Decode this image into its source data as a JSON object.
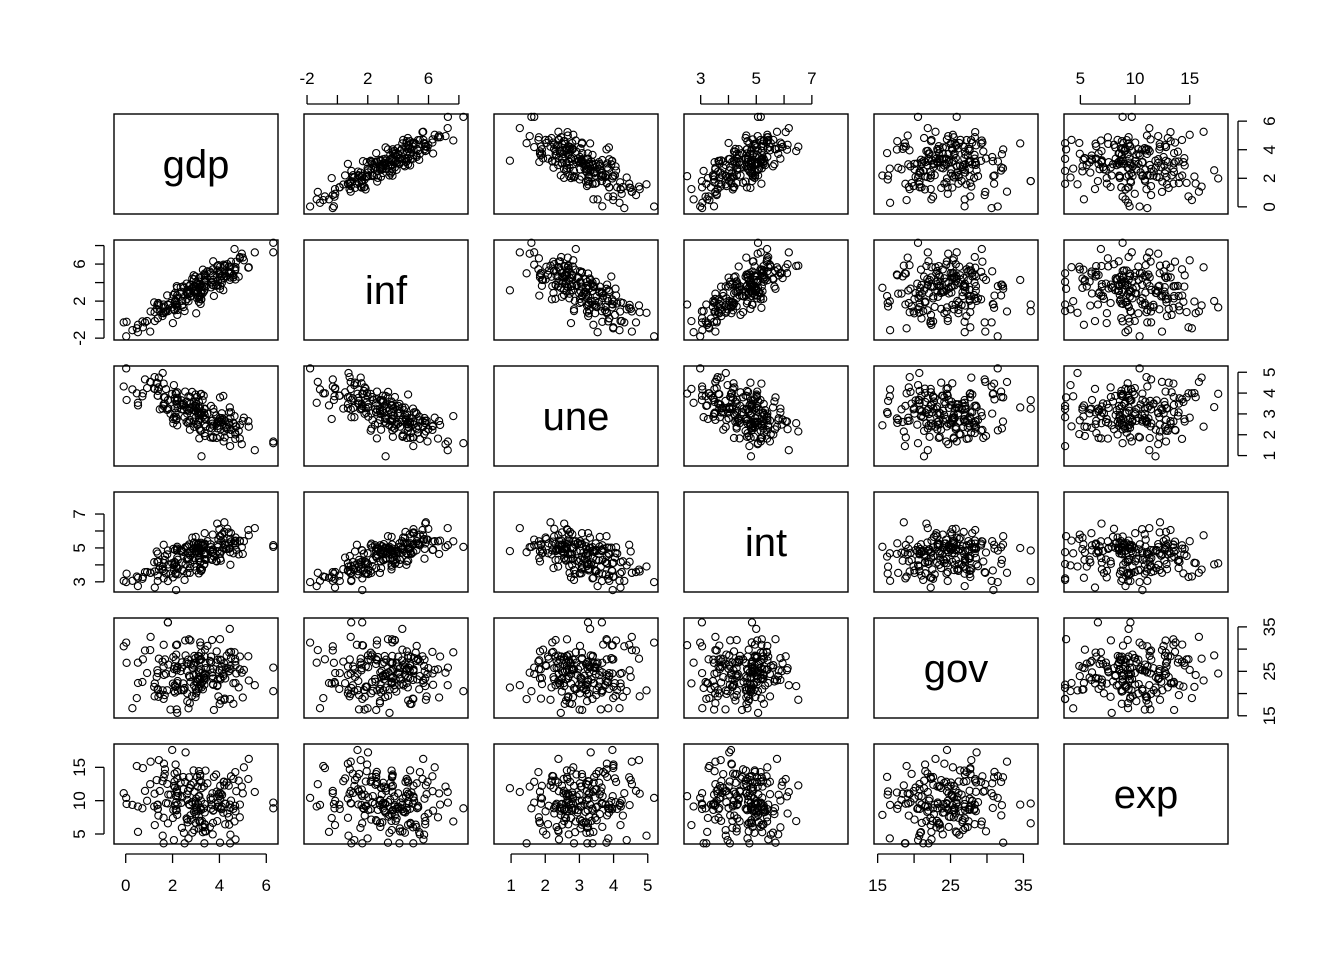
{
  "chart_data": {
    "type": "scatter",
    "subtype": "pairs-matrix",
    "variables": [
      "gdp",
      "inf",
      "une",
      "int",
      "gov",
      "exp"
    ],
    "axes": {
      "gdp": {
        "range": [
          -0.5,
          6.5
        ],
        "ticks": [
          0,
          2,
          4,
          6
        ],
        "tick_labels": [
          "0",
          "2",
          "4",
          "6"
        ]
      },
      "inf": {
        "range": [
          -2.2,
          8.6
        ],
        "ticks": [
          -2,
          0,
          2,
          4,
          6,
          8
        ],
        "tick_labels": [
          "-2",
          "",
          "2",
          "",
          "6",
          ""
        ]
      },
      "une": {
        "range": [
          0.5,
          5.3
        ],
        "ticks": [
          1,
          2,
          3,
          4,
          5
        ],
        "tick_labels": [
          "1",
          "2",
          "3",
          "4",
          "5"
        ]
      },
      "int": {
        "range": [
          2.4,
          8.3
        ],
        "ticks": [
          3,
          4,
          5,
          6,
          7
        ],
        "tick_labels": [
          "3",
          "",
          "5",
          "",
          "7"
        ]
      },
      "gov": {
        "range": [
          14.5,
          37
        ],
        "ticks": [
          15,
          20,
          25,
          30,
          35
        ],
        "tick_labels": [
          "15",
          "",
          "25",
          "",
          "35"
        ]
      },
      "exp": {
        "range": [
          3.5,
          18.5
        ],
        "ticks": [
          5,
          10,
          15
        ],
        "tick_labels": [
          "5",
          "10",
          "15"
        ]
      }
    },
    "tick_sides": {
      "top": [
        "inf",
        "int",
        "exp"
      ],
      "bottom": [
        "gdp",
        "une",
        "gov"
      ],
      "left": [
        "inf",
        "int",
        "exp"
      ],
      "right": [
        "gdp",
        "une",
        "gov"
      ]
    },
    "n_points": 200,
    "correlations_approx": {
      "gdp-inf": 0.85,
      "gdp-une": -0.65,
      "gdp-int": 0.6,
      "inf-une": -0.75,
      "inf-int": 0.88,
      "une-int": -0.35,
      "gdp-gov": 0.1,
      "int-gov": 0.05
    },
    "grid": false,
    "legend": "none"
  }
}
